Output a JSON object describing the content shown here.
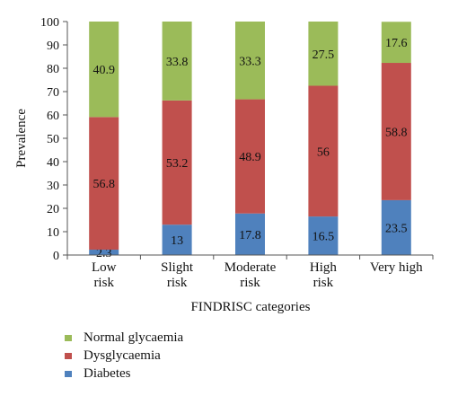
{
  "chart_data": {
    "type": "bar",
    "stacked": true,
    "categories": [
      [
        "Low",
        "risk"
      ],
      [
        "Slight",
        "risk"
      ],
      [
        "Moderate",
        "risk"
      ],
      [
        "High",
        "risk"
      ],
      [
        "Very high"
      ]
    ],
    "series": [
      {
        "name": "Diabetes",
        "color": "#4f81bd",
        "values": [
          2.3,
          13,
          17.8,
          16.5,
          23.5
        ],
        "labels": [
          "2.3",
          "13",
          "17.8",
          "16.5",
          "23.5"
        ]
      },
      {
        "name": "Dysglycaemia",
        "color": "#c0504d",
        "values": [
          56.8,
          53.2,
          48.9,
          56,
          58.8
        ],
        "labels": [
          "56.8",
          "53.2",
          "48.9",
          "56",
          "58.8"
        ]
      },
      {
        "name": "Normal glycaemia",
        "color": "#9bbb59",
        "values": [
          40.9,
          33.8,
          33.3,
          27.5,
          17.6
        ],
        "labels": [
          "40.9",
          "33.8",
          "33.3",
          "27.5",
          "17.6"
        ]
      }
    ],
    "legend_order": [
      "Normal glycaemia",
      "Dysglycaemia",
      "Diabetes"
    ],
    "legend_position": "bottom-left",
    "xlabel": "FINDRISC categories",
    "ylabel": "Prevalence",
    "ylim": [
      0,
      100
    ],
    "yticks": [
      0,
      10,
      20,
      30,
      40,
      50,
      60,
      70,
      80,
      90,
      100
    ],
    "grid": false
  }
}
